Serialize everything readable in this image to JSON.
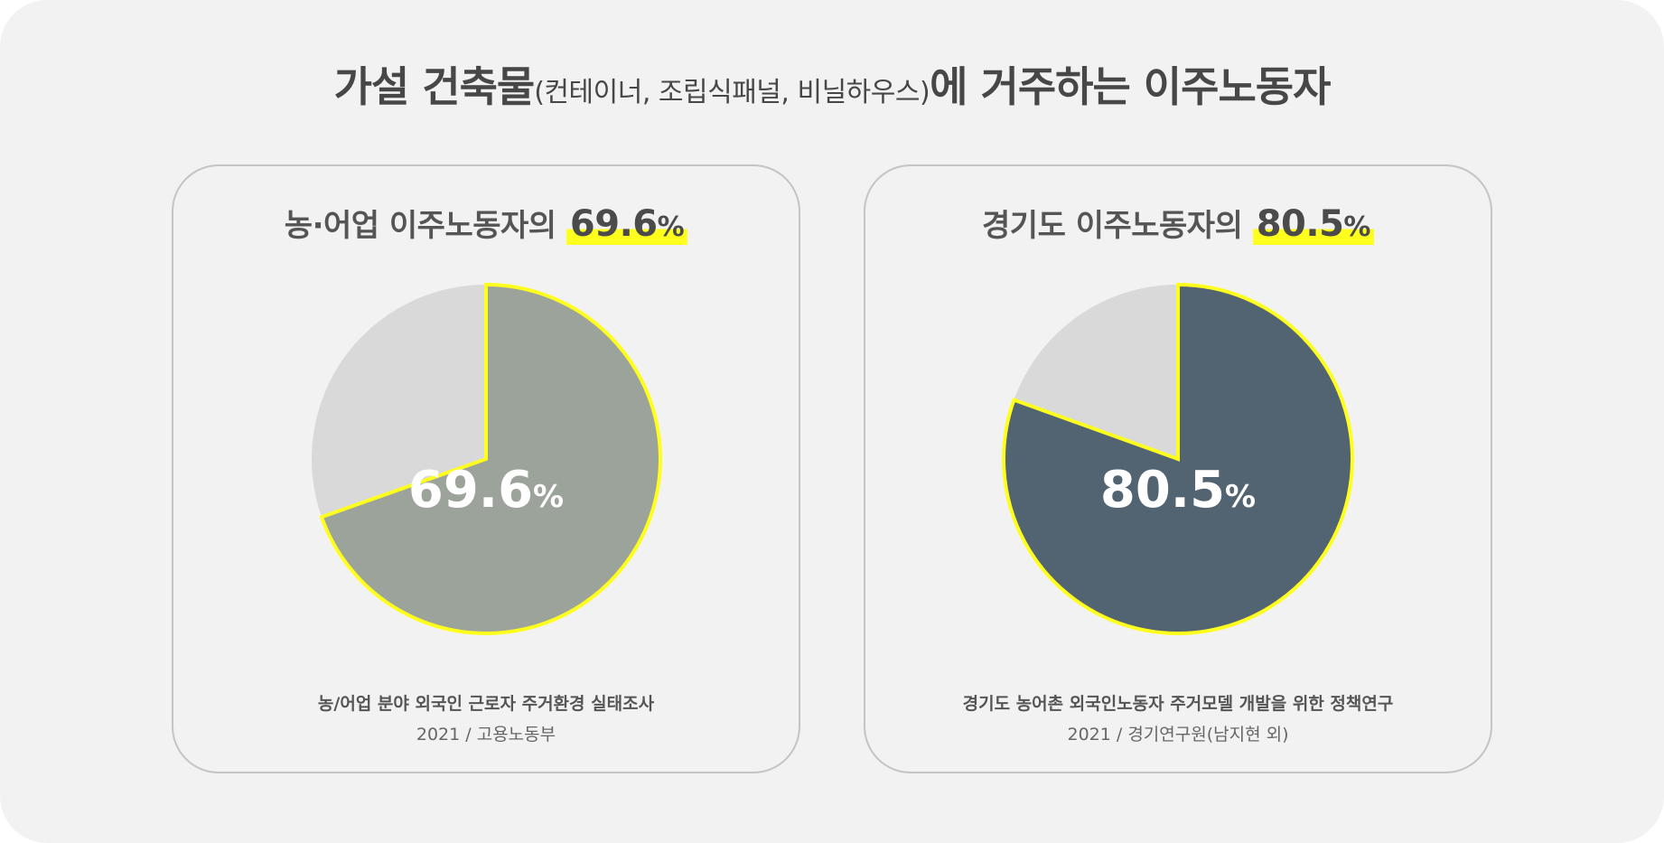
{
  "header": {
    "title_main": "가설 건축물",
    "title_paren": "(컨테이너, 조립식패널, 비닐하우스)",
    "title_end": "에 거주하는 이주노동자"
  },
  "colors": {
    "highlight": "#ffff1e",
    "remainder": "#d9d9d9",
    "left_slice": "#9ca39a",
    "right_slice": "#526371"
  },
  "chart_data": [
    {
      "type": "pie",
      "title_text": "농·어업 이주노동자의",
      "title_value": "69.6",
      "unit": "%",
      "value_label": "69.6",
      "slices": [
        {
          "value": 69.6,
          "color": "#9ca39a",
          "highlighted": true
        },
        {
          "value": 30.4,
          "color": "#d9d9d9",
          "highlighted": false
        }
      ],
      "source": "농/어업 분야 외국인 근로자 주거환경 실태조사",
      "source_sub": "2021 / 고용노동부"
    },
    {
      "type": "pie",
      "title_text": "경기도 이주노동자의",
      "title_value": "80.5",
      "unit": "%",
      "value_label": "80.5",
      "slices": [
        {
          "value": 80.5,
          "color": "#526371",
          "highlighted": true
        },
        {
          "value": 19.5,
          "color": "#d9d9d9",
          "highlighted": false
        }
      ],
      "source": "경기도 농어촌 외국인노동자 주거모델 개발을 위한 정책연구",
      "source_sub": "2021 / 경기연구원(남지현 외)"
    }
  ]
}
